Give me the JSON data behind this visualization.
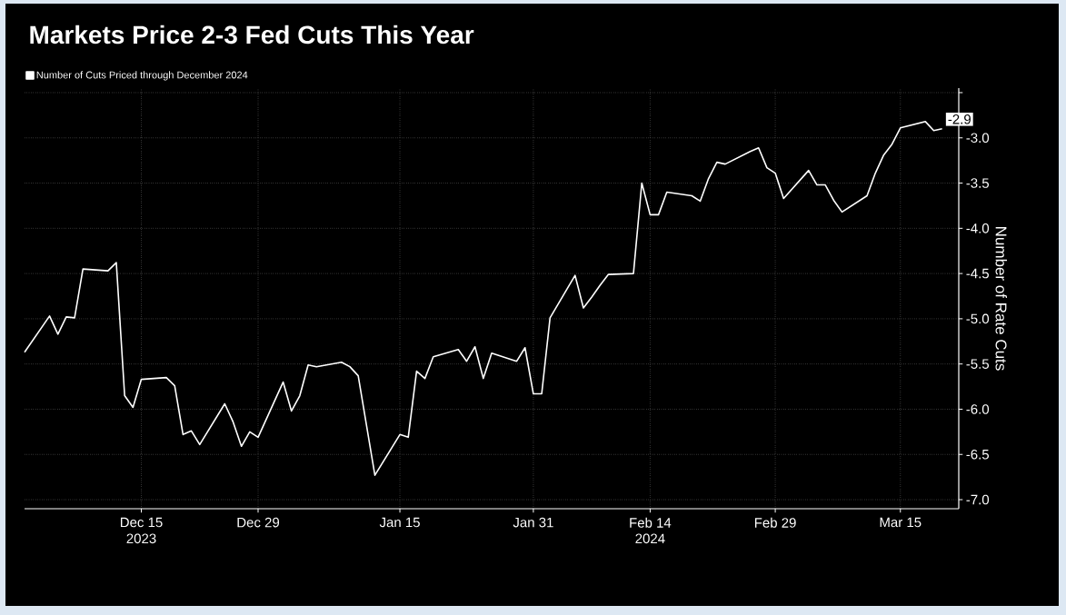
{
  "chart_data": {
    "type": "line",
    "title": "Markets Price 2-3 Fed Cuts This Year",
    "ylabel": "Number of Rate Cuts",
    "x": [
      "2023-12-01",
      "2023-12-04",
      "2023-12-05",
      "2023-12-06",
      "2023-12-07",
      "2023-12-08",
      "2023-12-11",
      "2023-12-12",
      "2023-12-13",
      "2023-12-14",
      "2023-12-15",
      "2023-12-18",
      "2023-12-19",
      "2023-12-20",
      "2023-12-21",
      "2023-12-22",
      "2023-12-25",
      "2023-12-26",
      "2023-12-27",
      "2023-12-28",
      "2023-12-29",
      "2024-01-01",
      "2024-01-02",
      "2024-01-03",
      "2024-01-04",
      "2024-01-05",
      "2024-01-08",
      "2024-01-09",
      "2024-01-10",
      "2024-01-11",
      "2024-01-12",
      "2024-01-15",
      "2024-01-16",
      "2024-01-17",
      "2024-01-18",
      "2024-01-19",
      "2024-01-22",
      "2024-01-23",
      "2024-01-24",
      "2024-01-25",
      "2024-01-26",
      "2024-01-29",
      "2024-01-30",
      "2024-01-31",
      "2024-02-01",
      "2024-02-02",
      "2024-02-05",
      "2024-02-06",
      "2024-02-07",
      "2024-02-08",
      "2024-02-09",
      "2024-02-12",
      "2024-02-13",
      "2024-02-14",
      "2024-02-15",
      "2024-02-16",
      "2024-02-19",
      "2024-02-20",
      "2024-02-21",
      "2024-02-22",
      "2024-02-23",
      "2024-02-26",
      "2024-02-27",
      "2024-02-28",
      "2024-02-29",
      "2024-03-01",
      "2024-03-04",
      "2024-03-05",
      "2024-03-06",
      "2024-03-07",
      "2024-03-08",
      "2024-03-11",
      "2024-03-12",
      "2024-03-13",
      "2024-03-14",
      "2024-03-15",
      "2024-03-18",
      "2024-03-19",
      "2024-03-20"
    ],
    "series": [
      {
        "name": "Number of Cuts Priced through December 2024",
        "color": "#ffffff",
        "values": [
          -5.37,
          -4.97,
          -5.17,
          -4.98,
          -4.99,
          -4.45,
          -4.47,
          -4.38,
          -5.85,
          -5.98,
          -5.67,
          -5.65,
          -5.74,
          -6.28,
          -6.24,
          -6.39,
          -5.94,
          -6.14,
          -6.41,
          -6.25,
          -6.31,
          -5.7,
          -6.02,
          -5.85,
          -5.51,
          -5.53,
          -5.48,
          -5.53,
          -5.63,
          -6.18,
          -6.73,
          -6.28,
          -6.31,
          -5.58,
          -5.66,
          -5.42,
          -5.34,
          -5.47,
          -5.31,
          -5.66,
          -5.38,
          -5.47,
          -5.32,
          -5.83,
          -5.83,
          -4.99,
          -4.52,
          -4.88,
          -4.76,
          -4.63,
          -4.51,
          -4.5,
          -3.5,
          -3.85,
          -3.85,
          -3.6,
          -3.64,
          -3.7,
          -3.45,
          -3.27,
          -3.29,
          -3.15,
          -3.11,
          -3.33,
          -3.39,
          -3.67,
          -3.36,
          -3.52,
          -3.52,
          -3.69,
          -3.82,
          -3.64,
          -3.39,
          -3.19,
          -3.07,
          -2.89,
          -2.82,
          -2.92,
          -2.9
        ]
      }
    ],
    "xlim": [
      "2023-12-01",
      "2024-03-22"
    ],
    "xticks": [
      {
        "value": "2023-12-15",
        "label": "Dec 15"
      },
      {
        "value": "2023-12-29",
        "label": "Dec 29"
      },
      {
        "value": "2024-01-15",
        "label": "Jan 15"
      },
      {
        "value": "2024-01-31",
        "label": "Jan 31"
      },
      {
        "value": "2024-02-14",
        "label": "Feb 14"
      },
      {
        "value": "2024-02-29",
        "label": "Feb 29"
      },
      {
        "value": "2024-03-15",
        "label": "Mar 15"
      }
    ],
    "ylim": [
      -7.1,
      -2.45
    ],
    "yticks": [
      {
        "value": -7,
        "label": "-7.0"
      },
      -6.5,
      {
        "value": -6,
        "label": "-6.0"
      },
      -5.5,
      {
        "value": -5,
        "label": "-5.0"
      },
      -4.5,
      {
        "value": -4,
        "label": "-4.0"
      },
      -3.5,
      {
        "value": -3,
        "label": "-3.0"
      },
      {
        "value": -2.5,
        "label": null
      }
    ],
    "grid": true,
    "legend": "top left",
    "annotations": [
      {
        "text": "-2.9",
        "x": "2024-03-20",
        "y": -2.9
      },
      "2023",
      "2024"
    ]
  }
}
